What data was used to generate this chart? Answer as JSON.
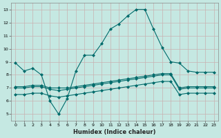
{
  "xlabel": "Humidex (Indice chaleur)",
  "xlim": [
    -0.5,
    23.5
  ],
  "ylim": [
    4.5,
    13.5
  ],
  "yticks": [
    5,
    6,
    7,
    8,
    9,
    10,
    11,
    12,
    13
  ],
  "xticks": [
    0,
    1,
    2,
    3,
    4,
    5,
    6,
    7,
    8,
    9,
    10,
    11,
    12,
    13,
    14,
    15,
    16,
    17,
    18,
    19,
    20,
    21,
    22,
    23
  ],
  "bg_color": "#c5e8e2",
  "grid_color": "#c8b0b0",
  "line_color": "#006b6b",
  "marker": "D",
  "markersize": 2.0,
  "linewidth": 0.8,
  "line1_x": [
    0,
    1,
    2,
    3,
    4,
    5,
    6,
    7,
    8,
    9,
    10,
    11,
    12,
    13,
    14,
    15,
    16,
    17,
    18,
    19,
    20,
    21,
    22,
    23
  ],
  "line1_y": [
    8.9,
    8.3,
    8.5,
    8.0,
    6.0,
    5.0,
    6.2,
    8.3,
    9.5,
    9.5,
    10.4,
    11.5,
    11.9,
    12.5,
    13.0,
    13.0,
    11.5,
    10.1,
    9.0,
    8.9,
    8.3,
    8.2,
    8.2,
    8.2
  ],
  "line2_x": [
    0,
    1,
    2,
    3,
    4,
    5,
    6,
    7,
    8,
    9,
    10,
    11,
    12,
    13,
    14,
    15,
    16,
    17,
    18,
    19,
    20,
    21,
    22,
    23
  ],
  "line2_y": [
    7.1,
    7.1,
    7.2,
    7.2,
    7.0,
    7.0,
    7.0,
    7.1,
    7.2,
    7.3,
    7.4,
    7.5,
    7.6,
    7.7,
    7.8,
    7.9,
    8.0,
    8.1,
    8.1,
    7.0,
    7.1,
    7.1,
    7.1,
    7.1
  ],
  "line3_x": [
    0,
    1,
    2,
    3,
    4,
    5,
    6,
    7,
    8,
    9,
    10,
    11,
    12,
    13,
    14,
    15,
    16,
    17,
    18,
    19,
    20,
    21,
    22,
    23
  ],
  "line3_y": [
    7.0,
    7.0,
    7.1,
    7.1,
    6.9,
    6.8,
    6.9,
    7.0,
    7.1,
    7.2,
    7.3,
    7.4,
    7.5,
    7.6,
    7.7,
    7.8,
    7.9,
    8.0,
    8.0,
    6.9,
    7.0,
    7.0,
    7.0,
    7.0
  ],
  "line4_x": [
    0,
    1,
    2,
    3,
    4,
    5,
    6,
    7,
    8,
    9,
    10,
    11,
    12,
    13,
    14,
    15,
    16,
    17,
    18,
    19,
    20,
    21,
    22,
    23
  ],
  "line4_y": [
    6.5,
    6.5,
    6.6,
    6.6,
    6.4,
    6.3,
    6.4,
    6.5,
    6.6,
    6.7,
    6.8,
    6.9,
    7.0,
    7.1,
    7.2,
    7.3,
    7.4,
    7.5,
    7.5,
    6.5,
    6.6,
    6.6,
    6.6,
    6.6
  ]
}
